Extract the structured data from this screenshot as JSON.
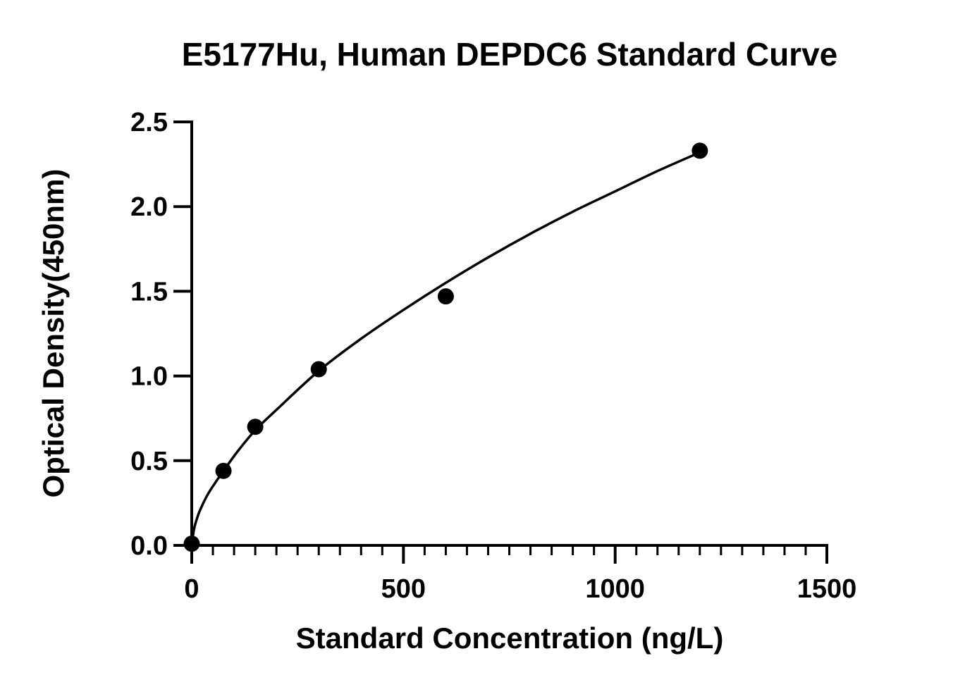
{
  "chart_data": {
    "type": "scatter",
    "title": "E5177Hu, Human DEPDC6 Standard Curve",
    "xlabel": "Standard Concentration (ng/L)",
    "ylabel": "Optical Density(450nm)",
    "xlim": [
      0,
      1500
    ],
    "ylim": [
      0,
      2.5
    ],
    "x_ticks": [
      0,
      500,
      1000,
      1500
    ],
    "x_tick_labels": [
      "0",
      "500",
      "1000",
      "1500"
    ],
    "y_ticks": [
      0,
      0.5,
      1.0,
      1.5,
      2.0,
      2.5
    ],
    "y_tick_labels": [
      "0.0",
      "0.5",
      "1.0",
      "1.5",
      "2.0",
      "2.5"
    ],
    "x_minor_tick_step": 50,
    "grid": false,
    "legend": "none",
    "series": [
      {
        "x": [
          0,
          75,
          150,
          300,
          600,
          1200
        ],
        "y": [
          0.01,
          0.44,
          0.7,
          1.04,
          1.47,
          2.33
        ]
      }
    ],
    "fit_curve": {
      "x": [
        0,
        5,
        10,
        20,
        40,
        75,
        110,
        150,
        200,
        300,
        400,
        500,
        600,
        700,
        800,
        900,
        1000,
        1100,
        1200
      ],
      "y": [
        0.0,
        0.09,
        0.14,
        0.21,
        0.31,
        0.44,
        0.56,
        0.68,
        0.8,
        1.03,
        1.22,
        1.39,
        1.55,
        1.7,
        1.84,
        1.97,
        2.09,
        2.21,
        2.32
      ]
    },
    "colors": {
      "marker": "#000000",
      "line": "#000000",
      "axis": "#000000"
    }
  }
}
